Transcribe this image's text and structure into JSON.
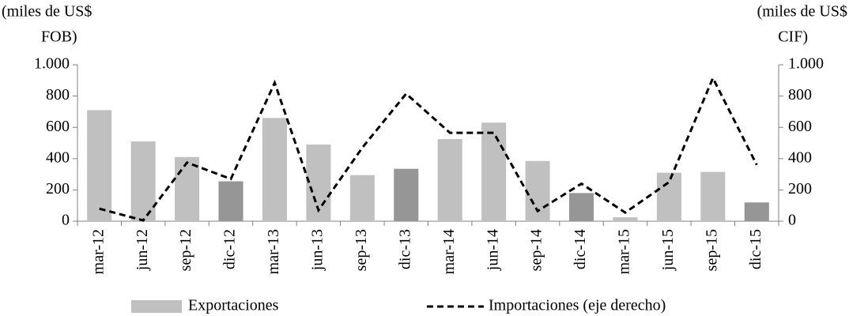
{
  "chart_data": {
    "type": "bar_line",
    "y_label": [
      "(miles  de US$",
      "FOB)"
    ],
    "y2_label": [
      "(miles  de US$",
      "CIF)"
    ],
    "categories": [
      "mar-12",
      "jun-12",
      "sep-12",
      "dic-12",
      "mar-13",
      "jun-13",
      "sep-13",
      "dic-13",
      "mar-14",
      "jun-14",
      "sep-14",
      "dic-14",
      "mar-15",
      "jun-15",
      "sep-15",
      "dic-15"
    ],
    "series": [
      {
        "name": "Exportaciones",
        "type": "bar",
        "color": "#c0c0c0",
        "colors": [
          "#c0c0c0",
          "#c0c0c0",
          "#c0c0c0",
          "#969696",
          "#c0c0c0",
          "#c0c0c0",
          "#c0c0c0",
          "#969696",
          "#c0c0c0",
          "#c0c0c0",
          "#c0c0c0",
          "#969696",
          "#c0c0c0",
          "#c0c0c0",
          "#c0c0c0",
          "#969696"
        ],
        "values": [
          710,
          510,
          410,
          255,
          660,
          490,
          295,
          335,
          525,
          630,
          385,
          180,
          25,
          310,
          315,
          120
        ]
      },
      {
        "name": "Importaciones (eje derecho)",
        "type": "line",
        "axis": "y2",
        "color": "#000000",
        "dashed": true,
        "values": [
          80,
          5,
          375,
          270,
          885,
          70,
          470,
          815,
          565,
          565,
          65,
          240,
          55,
          250,
          915,
          360
        ]
      }
    ],
    "ylim": [
      0,
      1000
    ],
    "yticks": [
      0,
      200,
      400,
      600,
      800,
      {
        "value": 1000,
        "label": "1.000"
      }
    ],
    "y2lim": [
      0,
      1000
    ],
    "y2ticks": [
      0,
      200,
      400,
      600,
      800,
      {
        "value": 1000,
        "label": "1.000"
      }
    ]
  }
}
